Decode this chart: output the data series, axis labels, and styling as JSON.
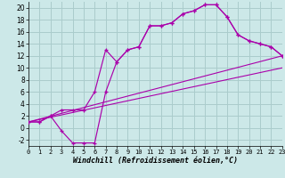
{
  "bg_color": "#cce8e8",
  "grid_color": "#aacccc",
  "line_color": "#aa00aa",
  "xlim": [
    0,
    23
  ],
  "ylim": [
    -3,
    21
  ],
  "xticks": [
    0,
    1,
    2,
    3,
    4,
    5,
    6,
    7,
    8,
    9,
    10,
    11,
    12,
    13,
    14,
    15,
    16,
    17,
    18,
    19,
    20,
    21,
    22,
    23
  ],
  "yticks": [
    -2,
    0,
    2,
    4,
    6,
    8,
    10,
    12,
    14,
    16,
    18,
    20
  ],
  "xlabel": "Windchill (Refroidissement éolien,°C)",
  "curve1_x": [
    0,
    1,
    2,
    3,
    4,
    5,
    6,
    7,
    8,
    9,
    10,
    11,
    12,
    13,
    14,
    15,
    16,
    17,
    18,
    19,
    20,
    21,
    22,
    23
  ],
  "curve1_y": [
    1,
    1,
    2,
    3,
    3,
    3,
    6,
    13,
    11,
    13,
    13.5,
    17,
    17,
    17.5,
    19,
    19.5,
    20.5,
    20.5,
    18.5,
    15.5,
    14.5,
    14,
    13.5,
    12
  ],
  "curve2_x": [
    0,
    1,
    2,
    3,
    4,
    5,
    6,
    7,
    8,
    9,
    10,
    11,
    12,
    13,
    14,
    15,
    16,
    17,
    18,
    19,
    20,
    21,
    22,
    23
  ],
  "curve2_y": [
    1,
    1,
    2,
    -0.5,
    -2.5,
    -2.5,
    -2.5,
    6,
    11,
    13,
    13.5,
    17,
    17,
    17.5,
    19,
    19.5,
    20.5,
    20.5,
    18.5,
    15.5,
    14.5,
    14,
    13.5,
    12
  ],
  "line1_x": [
    0,
    23
  ],
  "line1_y": [
    1,
    12
  ],
  "line2_x": [
    0,
    23
  ],
  "line2_y": [
    1,
    10
  ]
}
